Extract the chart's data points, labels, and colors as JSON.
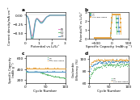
{
  "panel_A": {
    "label": "a",
    "xlabel": "Potential vs Li/Li⁺",
    "ylabel": "Current density/mA cm⁻²",
    "ylim": [
      -0.65,
      0.08
    ],
    "xlim": [
      0,
      3
    ],
    "legend": [
      "0.5",
      "1.0",
      "2.0"
    ],
    "colors": [
      "#e87cc8",
      "#6dbf7a",
      "#5b9bc9"
    ]
  },
  "panel_B": {
    "label": "b",
    "xlabel": "Specific Capacity (mAh g⁻¹)",
    "ylabel": "Potential/V vs Li/Li⁺",
    "xlim": [
      -700,
      500
    ],
    "ylim": [
      0,
      3.0
    ],
    "legend": [
      "0.5",
      "1.0",
      "0.5+PRS LiBOB"
    ],
    "colors": [
      "#6dbf7a",
      "#5b9bc9",
      "#e8a94c"
    ]
  },
  "panel_C": {
    "label": "c",
    "xlabel": "Cycle Number",
    "ylabel": "Specific Capacity\n(mAh g⁻¹)",
    "xlim": [
      0,
      100
    ],
    "ylim": [
      150,
      650
    ],
    "legend": [
      "0.5",
      "1.0",
      "0.5+PRS LiBOB"
    ],
    "colors": [
      "#6dbf7a",
      "#5b9bc9",
      "#e8a94c"
    ],
    "cap_green": [
      280,
      250,
      230,
      215,
      210,
      205,
      200,
      198,
      196,
      194
    ],
    "cap_blue": [
      380,
      370,
      368,
      365,
      362,
      360,
      358,
      356,
      354,
      352
    ],
    "cap_orange": [
      440,
      430,
      428,
      425,
      422,
      420,
      418,
      416,
      414,
      412
    ]
  },
  "panel_D": {
    "label": "d",
    "xlabel": "Cycle Number",
    "ylabel": "Coulombic\nEfficiency (%)",
    "xlim": [
      0,
      100
    ],
    "ylim": [
      60,
      105
    ],
    "legend": [
      "0.5",
      "1.0",
      "0.5+PRS LiBOB"
    ],
    "colors": [
      "#6dbf7a",
      "#5b9bc9",
      "#e8a94c"
    ]
  },
  "bg_color": "#ffffff",
  "font_size": 4.2,
  "tick_size": 3.2
}
